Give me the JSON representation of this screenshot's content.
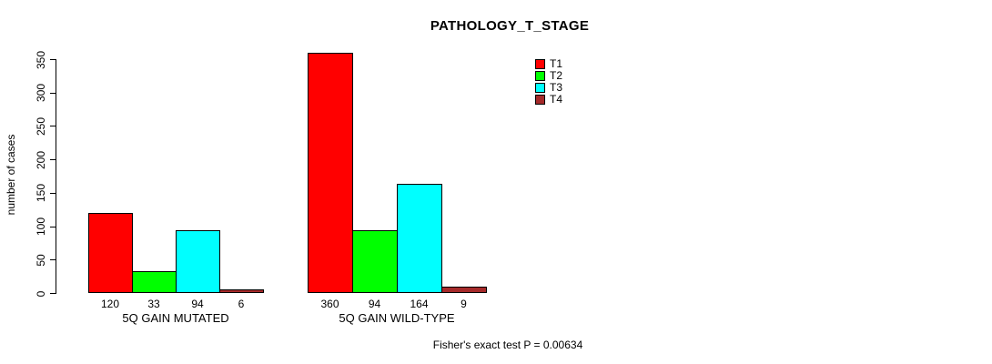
{
  "chart_data": {
    "type": "bar",
    "title": "PATHOLOGY_T_STAGE",
    "xlabel": "",
    "ylabel": "number of cases",
    "ylim": [
      0,
      350
    ],
    "yticks": [
      0,
      50,
      100,
      150,
      200,
      250,
      300,
      350
    ],
    "grid": false,
    "legend_position": "top-right",
    "series": [
      "T1",
      "T2",
      "T3",
      "T4"
    ],
    "colors": [
      "#ff0000",
      "#00ff00",
      "#00ffff",
      "#a52a2a"
    ],
    "groups": [
      {
        "label": "5Q GAIN MUTATED",
        "values": [
          120,
          33,
          94,
          6
        ]
      },
      {
        "label": "5Q GAIN WILD-TYPE",
        "values": [
          360,
          94,
          164,
          9
        ]
      }
    ],
    "annotation": "Fisher's exact test P = 0.00634"
  }
}
